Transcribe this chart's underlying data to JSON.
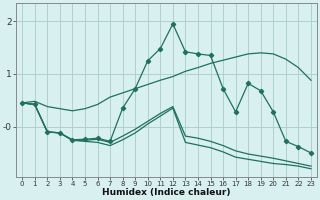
{
  "xlabel": "Humidex (Indice chaleur)",
  "x": [
    0,
    1,
    2,
    3,
    4,
    5,
    6,
    7,
    8,
    9,
    10,
    11,
    12,
    13,
    14,
    15,
    16,
    17,
    18,
    19,
    20,
    21,
    22,
    23
  ],
  "line_main": [
    0.45,
    0.42,
    -0.1,
    -0.12,
    -0.25,
    -0.24,
    -0.22,
    -0.28,
    0.35,
    0.72,
    1.25,
    1.48,
    1.95,
    1.42,
    1.38,
    1.35,
    0.72,
    0.28,
    0.82,
    0.68,
    0.28,
    -0.28,
    -0.38,
    -0.5
  ],
  "line_upper": [
    0.45,
    0.48,
    0.38,
    0.34,
    0.3,
    0.34,
    0.42,
    0.56,
    0.64,
    0.72,
    0.8,
    0.88,
    0.95,
    1.05,
    1.12,
    1.2,
    1.26,
    1.32,
    1.38,
    1.4,
    1.38,
    1.28,
    1.12,
    0.88
  ],
  "line_lower": [
    0.45,
    0.42,
    -0.1,
    -0.12,
    -0.26,
    -0.26,
    -0.24,
    -0.3,
    -0.18,
    -0.05,
    0.1,
    0.25,
    0.38,
    -0.18,
    -0.22,
    -0.28,
    -0.36,
    -0.46,
    -0.52,
    -0.56,
    -0.6,
    -0.65,
    -0.7,
    -0.75
  ],
  "line_bottom": [
    0.45,
    0.42,
    -0.1,
    -0.12,
    -0.26,
    -0.28,
    -0.3,
    -0.36,
    -0.25,
    -0.12,
    0.05,
    0.2,
    0.35,
    -0.3,
    -0.35,
    -0.4,
    -0.48,
    -0.58,
    -0.62,
    -0.66,
    -0.7,
    -0.72,
    -0.75,
    -0.8
  ],
  "bg_color": "#d8f0f0",
  "line_color": "#207060",
  "grid_color": "#b0d0d0",
  "ylim": [
    -0.95,
    2.35
  ],
  "xlim": [
    -0.5,
    23.5
  ]
}
